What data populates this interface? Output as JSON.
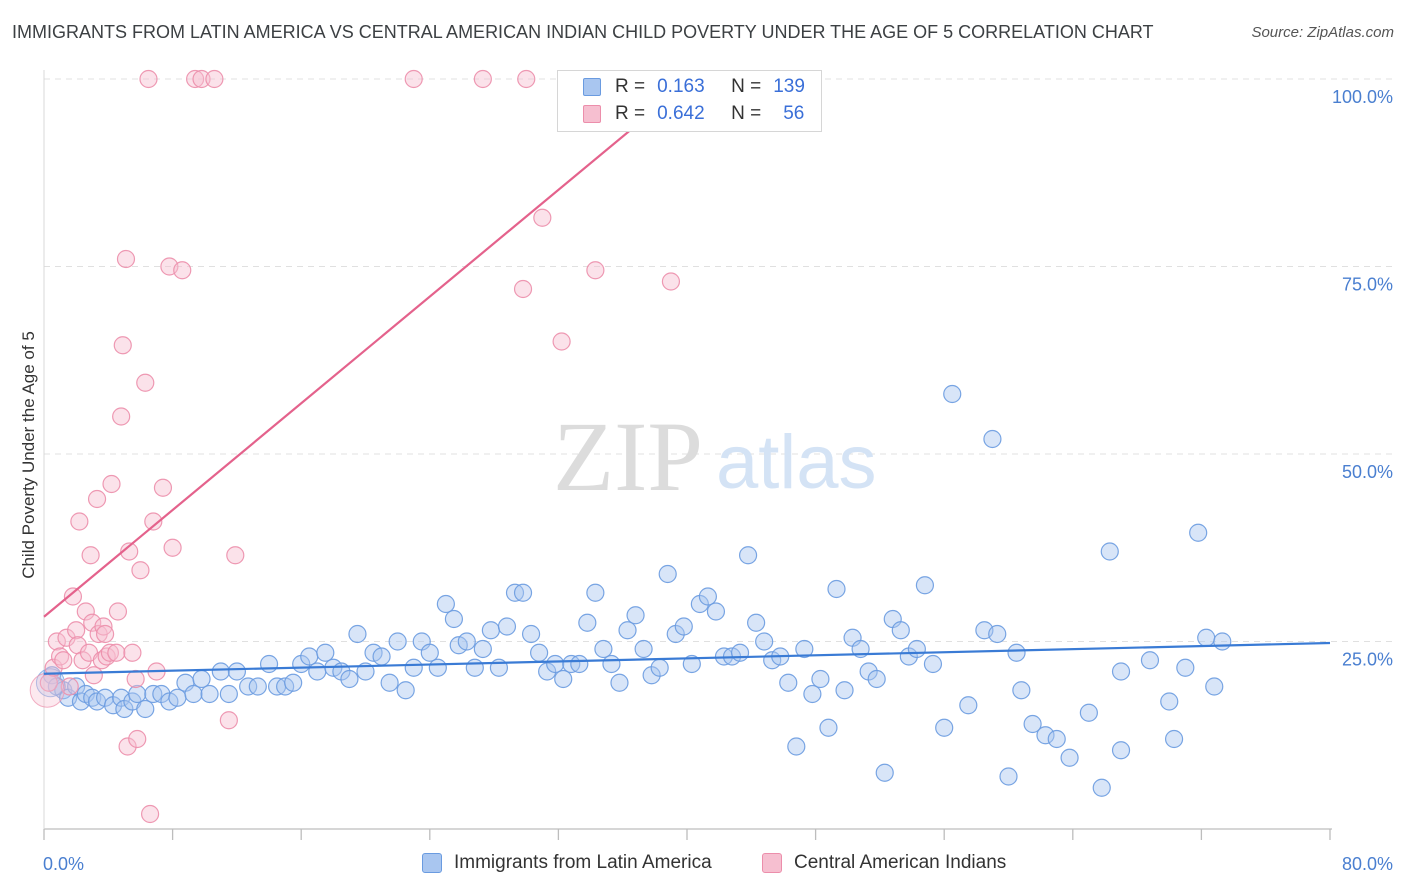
{
  "title": "IMMIGRANTS FROM LATIN AMERICA VS CENTRAL AMERICAN INDIAN CHILD POVERTY UNDER THE AGE OF 5 CORRELATION CHART",
  "source": "Source: ZipAtlas.com",
  "watermark": {
    "zip": "ZIP",
    "atlas": "atlas"
  },
  "legend_top": {
    "rows": [
      {
        "r_label": "R =",
        "r_value": "0.163",
        "n_label": "N =",
        "n_value": "139"
      },
      {
        "r_label": "R =",
        "r_value": "0.642",
        "n_label": "N =",
        "n_value": "56"
      }
    ]
  },
  "legend_bottom": {
    "items": [
      "Immigrants from Latin America",
      "Central American Indians"
    ]
  },
  "colors": {
    "blue_fill": "#a9c6f0",
    "blue_stroke": "#6a9be0",
    "blue_line": "#3a7bd5",
    "pink_fill": "#f6bfd0",
    "pink_stroke": "#ec8eab",
    "pink_line": "#e4628c",
    "axis_text": "#4a7fd0",
    "grid": "#e0e0e0"
  },
  "chart_data": {
    "type": "scatter",
    "title": "IMMIGRANTS FROM LATIN AMERICA VS CENTRAL AMERICAN INDIAN CHILD POVERTY UNDER THE AGE OF 5 CORRELATION CHART",
    "xlabel": "",
    "ylabel": "Child Poverty Under the Age of 5",
    "xlim": [
      0,
      80
    ],
    "ylim": [
      0,
      102
    ],
    "x_tick_labels": [
      "0.0%",
      "80.0%"
    ],
    "y_ticks": [
      25,
      50,
      75,
      100
    ],
    "y_tick_labels": [
      "25.0%",
      "50.0%",
      "75.0%",
      "100.0%"
    ],
    "grid": true,
    "legend_position": "top-center",
    "series": [
      {
        "name": "Immigrants from Latin America",
        "color": "#a9c6f0",
        "trend": {
          "x": [
            0,
            80
          ],
          "y": [
            20.7,
            24.8
          ]
        },
        "points": [
          [
            0.5,
            20.5
          ],
          [
            0.8,
            19.0
          ],
          [
            1.2,
            18.5
          ],
          [
            1.5,
            17.5
          ],
          [
            2.0,
            19.0
          ],
          [
            2.3,
            17.0
          ],
          [
            2.6,
            18.0
          ],
          [
            3.0,
            17.5
          ],
          [
            3.3,
            17.0
          ],
          [
            3.8,
            17.5
          ],
          [
            4.3,
            16.5
          ],
          [
            4.8,
            17.5
          ],
          [
            5.0,
            16.0
          ],
          [
            5.5,
            17.0
          ],
          [
            5.8,
            18.0
          ],
          [
            6.3,
            16.0
          ],
          [
            6.8,
            18.0
          ],
          [
            7.3,
            18.0
          ],
          [
            7.8,
            17.0
          ],
          [
            8.3,
            17.5
          ],
          [
            8.8,
            19.5
          ],
          [
            9.3,
            18.0
          ],
          [
            9.8,
            20.0
          ],
          [
            10.3,
            18.0
          ],
          [
            11.0,
            21.0
          ],
          [
            11.5,
            18.0
          ],
          [
            12.0,
            21.0
          ],
          [
            12.7,
            19.0
          ],
          [
            13.3,
            19.0
          ],
          [
            14.0,
            22.0
          ],
          [
            14.5,
            19.0
          ],
          [
            15.0,
            19.0
          ],
          [
            15.5,
            19.5
          ],
          [
            16.0,
            22.0
          ],
          [
            16.5,
            23.0
          ],
          [
            17.0,
            21.0
          ],
          [
            17.5,
            23.5
          ],
          [
            18.0,
            21.5
          ],
          [
            18.5,
            21.0
          ],
          [
            19.0,
            20.0
          ],
          [
            19.5,
            26.0
          ],
          [
            20.0,
            21.0
          ],
          [
            20.5,
            23.5
          ],
          [
            21.0,
            23.0
          ],
          [
            21.5,
            19.5
          ],
          [
            22.0,
            25.0
          ],
          [
            22.5,
            18.5
          ],
          [
            23.0,
            21.5
          ],
          [
            23.5,
            25.0
          ],
          [
            24.0,
            23.5
          ],
          [
            24.5,
            21.5
          ],
          [
            25.0,
            30.0
          ],
          [
            25.5,
            28.0
          ],
          [
            25.8,
            24.5
          ],
          [
            26.3,
            25.0
          ],
          [
            26.8,
            21.5
          ],
          [
            27.3,
            24.0
          ],
          [
            27.8,
            26.5
          ],
          [
            28.3,
            21.5
          ],
          [
            28.8,
            27.0
          ],
          [
            29.3,
            31.5
          ],
          [
            29.8,
            31.5
          ],
          [
            30.3,
            26.0
          ],
          [
            30.8,
            23.5
          ],
          [
            31.3,
            21.0
          ],
          [
            31.8,
            22.0
          ],
          [
            32.3,
            20.0
          ],
          [
            32.8,
            22.0
          ],
          [
            33.3,
            22.0
          ],
          [
            33.8,
            27.5
          ],
          [
            34.3,
            31.5
          ],
          [
            34.8,
            24.0
          ],
          [
            35.3,
            22.0
          ],
          [
            35.8,
            19.5
          ],
          [
            36.3,
            26.5
          ],
          [
            36.8,
            28.5
          ],
          [
            37.3,
            24.0
          ],
          [
            37.8,
            20.5
          ],
          [
            38.3,
            21.5
          ],
          [
            38.8,
            34.0
          ],
          [
            39.3,
            26.0
          ],
          [
            39.8,
            27.0
          ],
          [
            40.3,
            22.0
          ],
          [
            40.8,
            30.0
          ],
          [
            41.3,
            31.0
          ],
          [
            41.8,
            29.0
          ],
          [
            42.3,
            23.0
          ],
          [
            42.8,
            23.0
          ],
          [
            43.3,
            23.5
          ],
          [
            43.8,
            36.5
          ],
          [
            44.3,
            27.5
          ],
          [
            44.8,
            25.0
          ],
          [
            45.3,
            22.5
          ],
          [
            45.8,
            23.0
          ],
          [
            46.3,
            19.5
          ],
          [
            46.8,
            11.0
          ],
          [
            47.3,
            24.0
          ],
          [
            47.8,
            18.0
          ],
          [
            48.3,
            20.0
          ],
          [
            48.8,
            13.5
          ],
          [
            49.3,
            32.0
          ],
          [
            49.8,
            18.5
          ],
          [
            50.3,
            25.5
          ],
          [
            50.8,
            24.0
          ],
          [
            51.3,
            21.0
          ],
          [
            51.8,
            20.0
          ],
          [
            52.3,
            7.5
          ],
          [
            52.8,
            28.0
          ],
          [
            53.3,
            26.5
          ],
          [
            53.8,
            23.0
          ],
          [
            54.3,
            24.0
          ],
          [
            54.8,
            32.5
          ],
          [
            55.3,
            22.0
          ],
          [
            56.0,
            13.5
          ],
          [
            56.5,
            58.0
          ],
          [
            57.5,
            16.5
          ],
          [
            58.5,
            26.5
          ],
          [
            59.0,
            52.0
          ],
          [
            59.3,
            26.0
          ],
          [
            60.0,
            7.0
          ],
          [
            60.5,
            23.5
          ],
          [
            60.8,
            18.5
          ],
          [
            61.5,
            14.0
          ],
          [
            62.3,
            12.5
          ],
          [
            63.0,
            12.0
          ],
          [
            63.8,
            9.5
          ],
          [
            65.0,
            15.5
          ],
          [
            65.8,
            5.5
          ],
          [
            66.3,
            37.0
          ],
          [
            67.0,
            21.0
          ],
          [
            67.0,
            10.5
          ],
          [
            68.8,
            22.5
          ],
          [
            70.0,
            17.0
          ],
          [
            70.3,
            12.0
          ],
          [
            71.0,
            21.5
          ],
          [
            71.8,
            39.5
          ],
          [
            72.3,
            25.5
          ],
          [
            72.8,
            19.0
          ],
          [
            73.3,
            25.0
          ]
        ]
      },
      {
        "name": "Central American Indians",
        "color": "#f6bfd0",
        "trend": {
          "x": [
            0,
            37.5
          ],
          "y": [
            28.3,
            95.0
          ]
        },
        "points": [
          [
            0.3,
            19.5
          ],
          [
            0.6,
            21.5
          ],
          [
            0.8,
            25.0
          ],
          [
            1.0,
            23.0
          ],
          [
            1.2,
            22.5
          ],
          [
            1.4,
            25.5
          ],
          [
            1.6,
            19.0
          ],
          [
            1.8,
            31.0
          ],
          [
            2.0,
            26.5
          ],
          [
            2.1,
            24.5
          ],
          [
            2.2,
            41.0
          ],
          [
            2.4,
            22.5
          ],
          [
            2.6,
            29.0
          ],
          [
            2.8,
            23.5
          ],
          [
            2.9,
            36.5
          ],
          [
            3.0,
            27.5
          ],
          [
            3.1,
            20.5
          ],
          [
            3.3,
            44.0
          ],
          [
            3.4,
            26.0
          ],
          [
            3.6,
            22.5
          ],
          [
            3.7,
            27.0
          ],
          [
            3.8,
            26.0
          ],
          [
            3.9,
            23.0
          ],
          [
            4.1,
            23.5
          ],
          [
            4.2,
            46.0
          ],
          [
            4.5,
            23.5
          ],
          [
            4.6,
            29.0
          ],
          [
            4.8,
            55.0
          ],
          [
            4.9,
            64.5
          ],
          [
            5.1,
            76.0
          ],
          [
            5.2,
            11.0
          ],
          [
            5.3,
            37.0
          ],
          [
            5.5,
            23.5
          ],
          [
            5.7,
            20.0
          ],
          [
            5.8,
            12.0
          ],
          [
            6.0,
            34.5
          ],
          [
            6.3,
            59.5
          ],
          [
            6.5,
            100.0
          ],
          [
            6.6,
            2.0
          ],
          [
            6.8,
            41.0
          ],
          [
            7.0,
            21.0
          ],
          [
            7.4,
            45.5
          ],
          [
            7.8,
            75.0
          ],
          [
            8.0,
            37.5
          ],
          [
            8.6,
            74.5
          ],
          [
            9.4,
            100.0
          ],
          [
            9.8,
            100.0
          ],
          [
            10.6,
            100.0
          ],
          [
            11.5,
            14.5
          ],
          [
            11.9,
            36.5
          ],
          [
            23.0,
            100.0
          ],
          [
            27.3,
            100.0
          ],
          [
            29.8,
            72.0
          ],
          [
            30.0,
            100.0
          ],
          [
            31.0,
            81.5
          ],
          [
            32.2,
            65.0
          ],
          [
            34.3,
            74.5
          ],
          [
            39.0,
            73.0
          ]
        ]
      }
    ]
  }
}
